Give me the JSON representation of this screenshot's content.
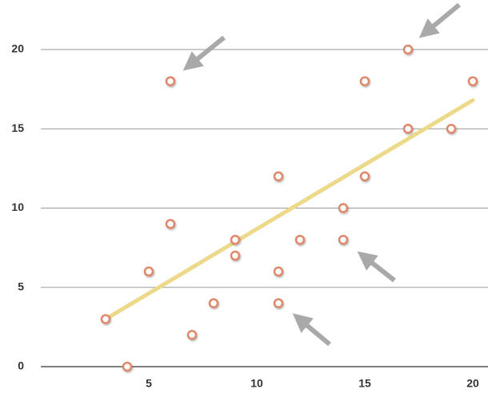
{
  "chart_data": {
    "type": "scatter",
    "series": [
      {
        "color": "#e0876a",
        "x": [
          3,
          4,
          5,
          6,
          6,
          7,
          8,
          9,
          9,
          11,
          11,
          11,
          12,
          14,
          14,
          15,
          15,
          17,
          17,
          19,
          20
        ],
        "values": [
          3,
          0,
          6,
          18,
          9,
          2,
          4,
          8,
          7,
          12,
          6,
          4,
          8,
          10,
          8,
          18,
          12,
          20,
          15,
          15,
          18
        ]
      }
    ],
    "trendline": {
      "color": "#ecd98a",
      "x": [
        3,
        20
      ],
      "values": [
        3,
        16.8
      ]
    },
    "xlim": [
      0,
      20
    ],
    "xticks": [
      5,
      10,
      15,
      20
    ],
    "ylim": [
      0,
      20
    ],
    "yticks": [
      0,
      5,
      10,
      15,
      20
    ],
    "grid": true
  }
}
